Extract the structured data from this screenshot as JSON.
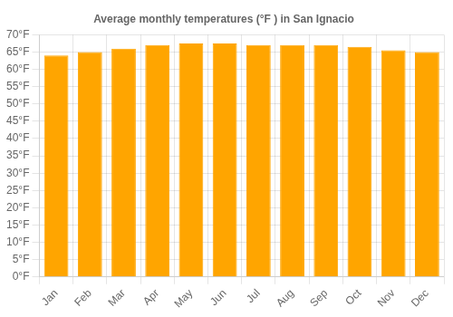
{
  "chart_data": {
    "type": "bar",
    "title": "Average monthly temperatures (°F ) in San Ignacio",
    "categories": [
      "Jan",
      "Feb",
      "Mar",
      "Apr",
      "May",
      "Jun",
      "Jul",
      "Aug",
      "Sep",
      "Oct",
      "Nov",
      "Dec"
    ],
    "values": [
      64,
      65,
      66,
      67,
      67.5,
      67.5,
      67,
      67,
      67,
      66.5,
      65.5,
      65
    ],
    "color": "#FFA500",
    "ylim": [
      0,
      70
    ],
    "yticks": [
      {
        "value": 0,
        "label": "0°F"
      },
      {
        "value": 5,
        "label": "5°F"
      },
      {
        "value": 10,
        "label": "10°F"
      },
      {
        "value": 15,
        "label": "15°F"
      },
      {
        "value": 20,
        "label": "20°F"
      },
      {
        "value": 25,
        "label": "25°F"
      },
      {
        "value": 30,
        "label": "30°F"
      },
      {
        "value": 35,
        "label": "35°F"
      },
      {
        "value": 40,
        "label": "40°F"
      },
      {
        "value": 45,
        "label": "45°F"
      },
      {
        "value": 50,
        "label": "50°F"
      },
      {
        "value": 55,
        "label": "55°F"
      },
      {
        "value": 60,
        "label": "60°F"
      },
      {
        "value": 65,
        "label": "65°F"
      },
      {
        "value": 70,
        "label": "70°F"
      }
    ],
    "grid": true
  }
}
